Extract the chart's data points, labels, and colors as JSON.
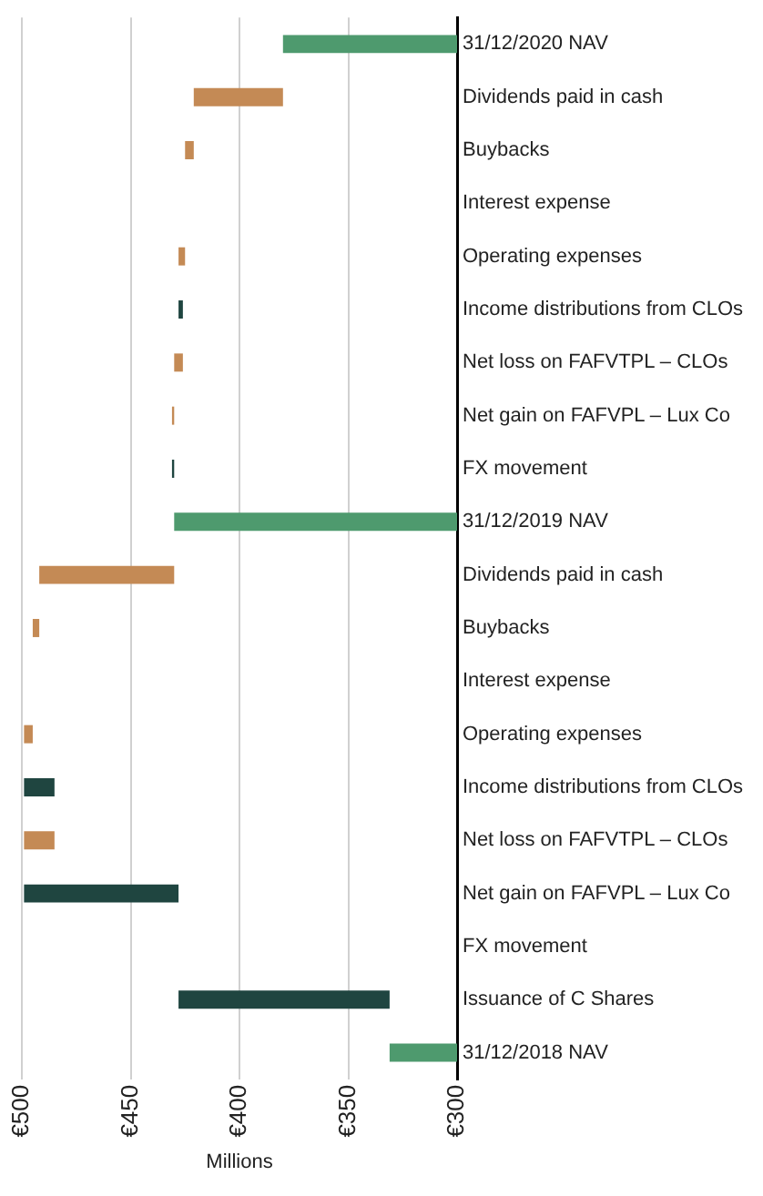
{
  "chart_data": {
    "type": "bar",
    "orientation": "horizontal",
    "xlabel": "Millions",
    "categories": [
      "31/12/2020 NAV",
      "Dividends paid in cash",
      "Buybacks",
      "Interest expense",
      "Operating expenses",
      "Income distributions from CLOs",
      "Net loss on FAFVTPL – CLOs",
      "Net gain on FAFVPL – Lux Co",
      "FX movement",
      "31/12/2019 NAV",
      "Dividends paid in cash",
      "Buybacks",
      "Interest expense",
      "Operating expenses",
      "Income distributions from CLOs",
      "Net loss on FAFVTPL – CLOs",
      "Net gain on FAFVPL – Lux Co",
      "FX movement",
      "Issuance of C Shares",
      "31/12/2018 NAV"
    ],
    "values": [
      380,
      -41,
      -4,
      0,
      -3,
      2,
      -4,
      -1,
      1,
      430,
      -62,
      -3,
      0,
      -4,
      14,
      -14,
      71,
      0,
      97,
      331
    ],
    "base": [
      null,
      421,
      425,
      null,
      428,
      426,
      430,
      431,
      430,
      null,
      492,
      495,
      null,
      499,
      485,
      499,
      428,
      null,
      331,
      null
    ],
    "colors": [
      "#4e9a6e",
      "#c48a55",
      "#c48a55",
      "#c48a55",
      "#c48a55",
      "#1f4540",
      "#c48a55",
      "#c48a55",
      "#1f4540",
      "#4e9a6e",
      "#c48a55",
      "#c48a55",
      "#c48a55",
      "#c48a55",
      "#1f4540",
      "#c48a55",
      "#1f4540",
      "#1f4540",
      "#1f4540",
      "#4e9a6e"
    ],
    "xlim": [
      500,
      300
    ],
    "xticks": [
      {
        "value": 500,
        "label": "€500"
      },
      {
        "value": 450,
        "label": "€450"
      },
      {
        "value": 400,
        "label": "€400"
      },
      {
        "value": 350,
        "label": "€350"
      },
      {
        "value": 300,
        "label": "€300"
      }
    ],
    "grid": "x",
    "legend": false
  }
}
